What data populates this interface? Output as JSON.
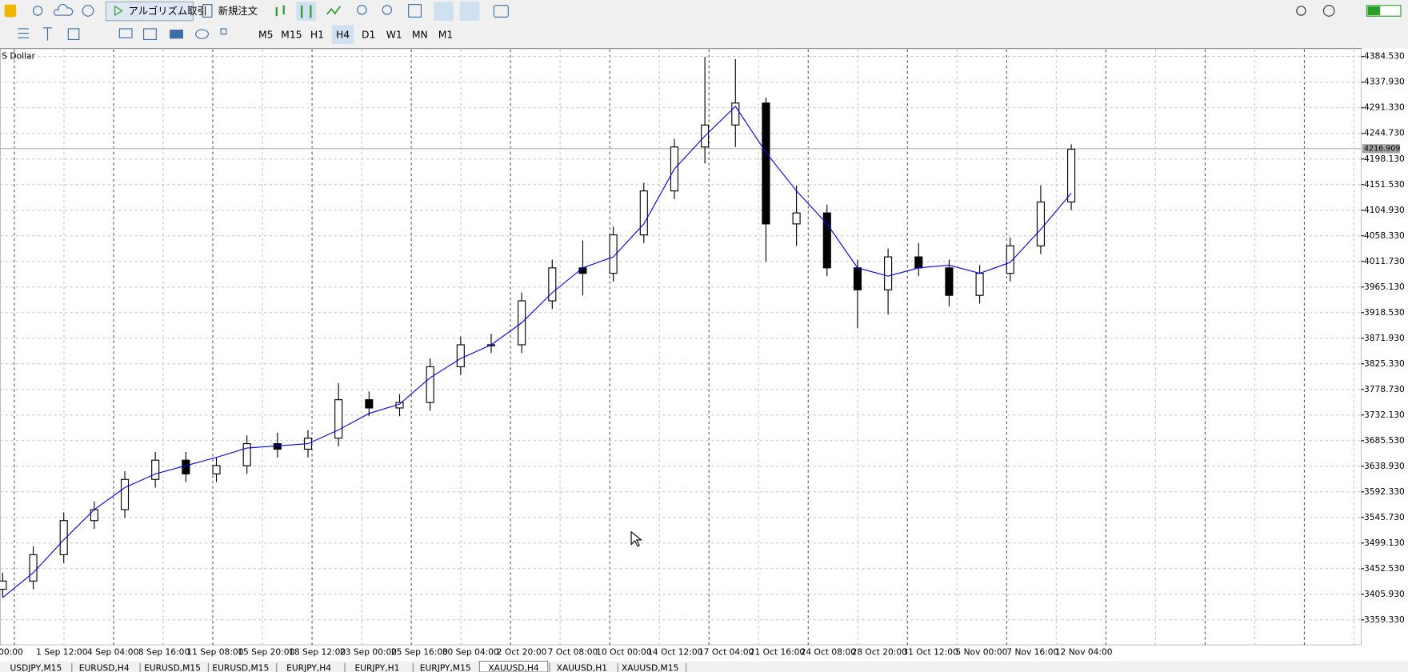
{
  "toolbar": {
    "algo_button": "アルゴリズム取引",
    "new_order_button": "新規注文"
  },
  "timeframes": {
    "items": [
      "M5",
      "M15",
      "H1",
      "H4",
      "D1",
      "W1",
      "MN",
      "M1"
    ],
    "active_index": 3
  },
  "chart_data": {
    "type": "candlestick",
    "symbol_label": "S Dollar",
    "x_labels": [
      "00:00",
      "1 Sep 12:00",
      "4 Sep 04:00",
      "8 Sep 16:00",
      "11 Sep 08:00",
      "15 Sep 20:00",
      "18 Sep 12:00",
      "23 Sep 00:00",
      "25 Sep 16:00",
      "30 Sep 04:00",
      "2 Oct 20:00",
      "7 Oct 08:00",
      "10 Oct 00:00",
      "14 Oct 12:00",
      "17 Oct 04:00",
      "21 Oct 16:00",
      "24 Oct 08:00",
      "28 Oct 20:00",
      "31 Oct 12:00",
      "5 Nov 00:00",
      "7 Nov 16:00",
      "12 Nov 04:00"
    ],
    "open": [
      3415,
      3430,
      3478,
      3540,
      3560,
      3615,
      3650,
      3625,
      3640,
      3680,
      3670,
      3690,
      3760,
      3745,
      3755,
      3820,
      3860,
      3860,
      3940,
      4000,
      3990,
      4060,
      4140,
      4220,
      4260,
      4300,
      4080,
      4100,
      4000,
      3960,
      4020,
      4000,
      3950,
      3990,
      4040,
      4120
    ],
    "high": [
      3445,
      3493,
      3555,
      3575,
      3630,
      3665,
      3665,
      3655,
      3695,
      3700,
      3705,
      3790,
      3775,
      3770,
      3835,
      3875,
      3880,
      3955,
      4015,
      4050,
      4075,
      4155,
      4235,
      4384,
      4380,
      4310,
      4150,
      4115,
      4015,
      4035,
      4045,
      4015,
      4005,
      4055,
      4150,
      4225
    ],
    "low": [
      3400,
      3415,
      3463,
      3525,
      3545,
      3600,
      3610,
      3610,
      3625,
      3655,
      3655,
      3675,
      3730,
      3730,
      3740,
      3805,
      3845,
      3845,
      3925,
      3950,
      3975,
      4045,
      4125,
      4190,
      4220,
      4011,
      4040,
      3985,
      3890,
      3915,
      3985,
      3930,
      3935,
      3975,
      4025,
      4105
    ],
    "close": [
      3430,
      3478,
      3540,
      3560,
      3615,
      3650,
      3625,
      3640,
      3680,
      3670,
      3690,
      3760,
      3745,
      3755,
      3820,
      3860,
      3860,
      3940,
      4000,
      3990,
      4060,
      4140,
      4220,
      4260,
      4300,
      4080,
      4100,
      4000,
      3960,
      4020,
      4000,
      3950,
      3990,
      4040,
      4120,
      4216
    ],
    "ma": {
      "color": "#0000ff",
      "values": [
        3400,
        3445,
        3505,
        3560,
        3600,
        3625,
        3640,
        3655,
        3672,
        3676,
        3680,
        3705,
        3735,
        3752,
        3800,
        3835,
        3860,
        3900,
        3955,
        4000,
        4020,
        4080,
        4180,
        4240,
        4294,
        4210,
        4140,
        4080,
        4000,
        3985,
        4000,
        4005,
        3990,
        4010,
        4070,
        4136
      ]
    },
    "ylim": [
      3313.5,
      4397.6
    ],
    "yticks": [
      {
        "value": 4384.53,
        "label": "4384.530"
      },
      {
        "value": 4337.93,
        "label": "4337.930"
      },
      {
        "value": 4291.33,
        "label": "4291.330"
      },
      {
        "value": 4244.73,
        "label": "4244.730"
      },
      {
        "value": 4198.13,
        "label": "4198.130"
      },
      {
        "value": 4151.53,
        "label": "4151.530"
      },
      {
        "value": 4104.93,
        "label": "4104.930"
      },
      {
        "value": 4058.33,
        "label": "4058.330"
      },
      {
        "value": 4011.73,
        "label": "4011.730"
      },
      {
        "value": 3965.13,
        "label": "3965.130"
      },
      {
        "value": 3918.53,
        "label": "3918.530"
      },
      {
        "value": 3871.93,
        "label": "3871.930"
      },
      {
        "value": 3825.33,
        "label": "3825.330"
      },
      {
        "value": 3778.73,
        "label": "3778.730"
      },
      {
        "value": 3732.13,
        "label": "3732.130"
      },
      {
        "value": 3685.53,
        "label": "3685.530"
      },
      {
        "value": 3638.93,
        "label": "3638.930"
      },
      {
        "value": 3592.33,
        "label": "3592.330"
      },
      {
        "value": 3545.73,
        "label": "3545.730"
      },
      {
        "value": 3499.13,
        "label": "3499.130"
      },
      {
        "value": 3452.53,
        "label": "3452.530"
      },
      {
        "value": 3405.93,
        "label": "3405.930"
      },
      {
        "value": 3359.33,
        "label": "3359.330"
      }
    ],
    "current_price": {
      "value": 4216.909,
      "label": "4216.909"
    },
    "grid": true
  },
  "tabs": {
    "items": [
      "USDJPY,M15",
      "EURUSD,H4",
      "EURUSD,M15",
      "EURUSD,M15",
      "EURJPY,H4",
      "EURJPY,H1",
      "EURJPY,M15",
      "XAUUSD,H4",
      "XAUUSD,H1",
      "XAUUSD,M15"
    ],
    "active_index": 7
  }
}
